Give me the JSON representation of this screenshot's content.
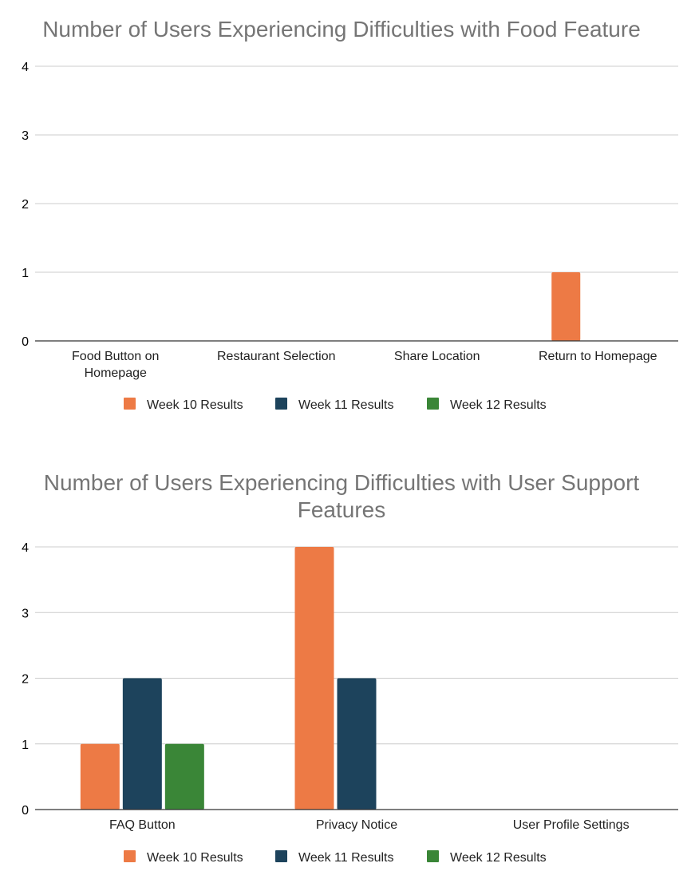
{
  "colors": {
    "week10": "#ed7a45",
    "week11": "#1d435c",
    "week12": "#3a8637",
    "grid": "#cccccc",
    "axis": "#333333",
    "title": "#757575"
  },
  "chart_data": [
    {
      "type": "bar",
      "title": "Number of Users Experiencing Difficulties with Food Feature",
      "categories": [
        [
          "Food Button on",
          "Homepage"
        ],
        [
          "Restaurant Selection"
        ],
        [
          "Share Location"
        ],
        [
          "Return to Homepage"
        ]
      ],
      "series": [
        {
          "name": "Week 10 Results",
          "color_key": "week10",
          "values": [
            0,
            0,
            0,
            1
          ]
        },
        {
          "name": "Week 11 Results",
          "color_key": "week11",
          "values": [
            0,
            0,
            0,
            0
          ]
        },
        {
          "name": "Week 12 Results",
          "color_key": "week12",
          "values": [
            0,
            0,
            0,
            0
          ]
        }
      ],
      "yticks": [
        "0",
        "1",
        "2",
        "3",
        "4"
      ],
      "ylim": [
        0,
        4
      ],
      "grid": true,
      "legend": "bottom"
    },
    {
      "type": "bar",
      "title": [
        "Number of Users Experiencing Difficulties with User Support",
        "Features"
      ],
      "categories": [
        [
          "FAQ Button"
        ],
        [
          "Privacy Notice"
        ],
        [
          "User Profile Settings"
        ]
      ],
      "series": [
        {
          "name": "Week 10 Results",
          "color_key": "week10",
          "values": [
            1,
            4,
            0
          ]
        },
        {
          "name": "Week 11 Results",
          "color_key": "week11",
          "values": [
            2,
            2,
            0
          ]
        },
        {
          "name": "Week 12 Results",
          "color_key": "week12",
          "values": [
            1,
            0,
            0
          ]
        }
      ],
      "yticks": [
        "0",
        "1",
        "2",
        "3",
        "4"
      ],
      "ylim": [
        0,
        4
      ],
      "grid": true,
      "legend": "bottom"
    }
  ]
}
